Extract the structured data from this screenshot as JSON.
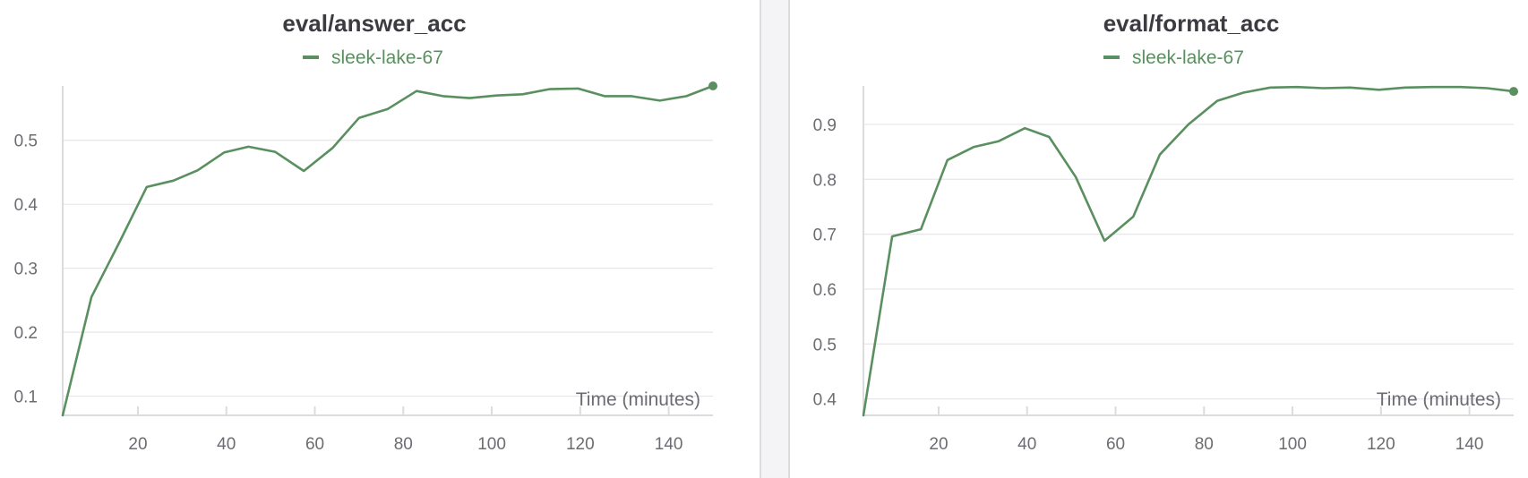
{
  "colors": {
    "series": "#5a8f5f",
    "grid": "#e6e6e9",
    "axis": "#dcdcdf",
    "text": "#6c6c73",
    "title": "#3b3b42"
  },
  "chart_data": [
    {
      "type": "line",
      "title": "eval/answer_acc",
      "xlabel": "Time (minutes)",
      "ylabel": "",
      "legend_position": "top-center",
      "grid": true,
      "xlim": [
        3,
        150
      ],
      "ylim": [
        0.07,
        0.585
      ],
      "xticks": [
        20,
        40,
        60,
        80,
        100,
        120,
        140
      ],
      "yticks": [
        0.1,
        0.2,
        0.3,
        0.4,
        0.5
      ],
      "ytick_labels": [
        "0.1",
        "0.2",
        "0.3",
        "0.4",
        "0.5"
      ],
      "series": [
        {
          "name": "sleek-lake-67",
          "x": [
            3,
            9.5,
            16,
            22,
            28,
            33.5,
            39.5,
            45,
            51,
            57.5,
            64,
            70,
            76.5,
            83,
            89,
            95,
            101,
            107,
            113,
            119.5,
            125.5,
            131.5,
            138,
            144,
            150
          ],
          "y": [
            0.07,
            0.255,
            0.343,
            0.427,
            0.437,
            0.453,
            0.481,
            0.49,
            0.482,
            0.452,
            0.488,
            0.535,
            0.549,
            0.577,
            0.569,
            0.566,
            0.57,
            0.572,
            0.58,
            0.581,
            0.569,
            0.569,
            0.562,
            0.569,
            0.585
          ]
        }
      ]
    },
    {
      "type": "line",
      "title": "eval/format_acc",
      "xlabel": "Time (minutes)",
      "ylabel": "",
      "legend_position": "top-center",
      "grid": true,
      "xlim": [
        3,
        150
      ],
      "ylim": [
        0.37,
        0.97
      ],
      "xticks": [
        20,
        40,
        60,
        80,
        100,
        120,
        140
      ],
      "yticks": [
        0.4,
        0.5,
        0.6,
        0.7,
        0.8,
        0.9
      ],
      "ytick_labels": [
        "0.4",
        "0.5",
        "0.6",
        "0.7",
        "0.8",
        "0.9"
      ],
      "series": [
        {
          "name": "sleek-lake-67",
          "x": [
            3,
            9.5,
            16,
            22,
            28,
            33.5,
            39.5,
            45,
            51,
            57.5,
            64,
            70,
            76.5,
            83,
            89,
            95,
            101,
            107,
            113,
            119.5,
            125.5,
            131.5,
            138,
            144,
            150
          ],
          "y": [
            0.37,
            0.696,
            0.709,
            0.835,
            0.859,
            0.869,
            0.893,
            0.877,
            0.804,
            0.688,
            0.732,
            0.845,
            0.9,
            0.943,
            0.958,
            0.967,
            0.968,
            0.966,
            0.967,
            0.963,
            0.967,
            0.968,
            0.968,
            0.966,
            0.96
          ]
        }
      ]
    }
  ]
}
